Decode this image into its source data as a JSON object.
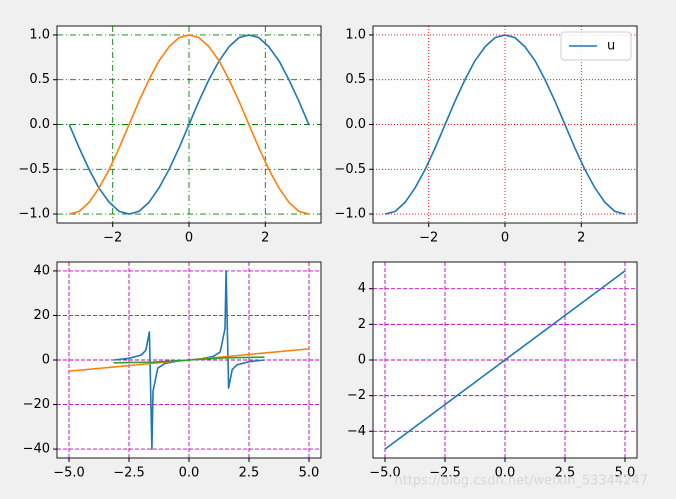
{
  "chart_data": [
    {
      "type": "line",
      "xlim": [
        -3.46,
        3.46
      ],
      "ylim": [
        -1.1,
        1.1
      ],
      "xticks": [
        {
          "value": -2,
          "label": "−2"
        },
        0,
        2
      ],
      "yticks": [
        {
          "value": -1,
          "label": "−1.0"
        },
        {
          "value": -0.5,
          "label": "−0.5"
        },
        {
          "value": 0,
          "label": "0.0"
        },
        {
          "value": 0.5,
          "label": "0.5"
        },
        {
          "value": 1,
          "label": "1.0"
        }
      ],
      "grid": {
        "color": "#008000",
        "dash": "6,3,1,3"
      },
      "series": [
        {
          "color": "#1f77b4",
          "x": [
            -3.14,
            -2.88,
            -2.62,
            -2.36,
            -2.09,
            -1.83,
            -1.57,
            -1.31,
            -1.05,
            -0.79,
            -0.52,
            -0.26,
            0,
            0.26,
            0.52,
            0.79,
            1.05,
            1.31,
            1.57,
            1.83,
            2.09,
            2.36,
            2.62,
            2.88,
            3.14
          ],
          "values": [
            0,
            -0.26,
            -0.5,
            -0.71,
            -0.87,
            -0.97,
            -1,
            -0.97,
            -0.87,
            -0.71,
            -0.5,
            -0.26,
            0,
            0.26,
            0.5,
            0.71,
            0.87,
            0.97,
            1,
            0.97,
            0.87,
            0.71,
            0.5,
            0.26,
            0
          ]
        },
        {
          "color": "#ff7f0e",
          "x": [
            -3.14,
            -2.88,
            -2.62,
            -2.36,
            -2.09,
            -1.83,
            -1.57,
            -1.31,
            -1.05,
            -0.79,
            -0.52,
            -0.26,
            0,
            0.26,
            0.52,
            0.79,
            1.05,
            1.31,
            1.57,
            1.83,
            2.09,
            2.36,
            2.62,
            2.88,
            3.14
          ],
          "values": [
            -1,
            -0.97,
            -0.87,
            -0.71,
            -0.5,
            -0.26,
            0,
            0.26,
            0.5,
            0.71,
            0.87,
            0.97,
            1,
            0.97,
            0.87,
            0.71,
            0.5,
            0.26,
            0,
            -0.26,
            -0.5,
            -0.71,
            -0.87,
            -0.97,
            -1
          ]
        }
      ]
    },
    {
      "type": "line",
      "xlim": [
        -3.46,
        3.46
      ],
      "ylim": [
        -1.1,
        1.1
      ],
      "xticks": [
        {
          "value": -2,
          "label": "−2"
        },
        0,
        2
      ],
      "yticks": [
        {
          "value": -1,
          "label": "−1.0"
        },
        {
          "value": -0.5,
          "label": "−0.5"
        },
        {
          "value": 0,
          "label": "0.0"
        },
        {
          "value": 0.5,
          "label": "0.5"
        },
        {
          "value": 1,
          "label": "1.0"
        }
      ],
      "grid": {
        "color": "#ff0000",
        "dash": "1,2"
      },
      "legend": "upper right",
      "series": [
        {
          "name": "u",
          "color": "#1f77b4",
          "x": [
            -3.14,
            -2.88,
            -2.62,
            -2.36,
            -2.09,
            -1.83,
            -1.57,
            -1.31,
            -1.05,
            -0.79,
            -0.52,
            -0.26,
            0,
            0.26,
            0.52,
            0.79,
            1.05,
            1.31,
            1.57,
            1.83,
            2.09,
            2.36,
            2.62,
            2.88,
            3.14
          ],
          "values": [
            -1,
            -0.97,
            -0.87,
            -0.71,
            -0.5,
            -0.26,
            0,
            0.26,
            0.5,
            0.71,
            0.87,
            0.97,
            1,
            0.97,
            0.87,
            0.71,
            0.5,
            0.26,
            0,
            -0.26,
            -0.5,
            -0.71,
            -0.87,
            -0.97,
            -1
          ]
        }
      ]
    },
    {
      "type": "line",
      "xlim": [
        -5.5,
        5.5
      ],
      "ylim": [
        -44,
        44
      ],
      "xticks": [
        {
          "value": -5,
          "label": "−5.0"
        },
        {
          "value": -2.5,
          "label": "−2.5"
        },
        {
          "value": 0,
          "label": "0.0"
        },
        {
          "value": 2.5,
          "label": "2.5"
        },
        {
          "value": 5,
          "label": "5.0"
        }
      ],
      "yticks": [
        {
          "value": -40,
          "label": "−40"
        },
        {
          "value": -20,
          "label": "−20"
        },
        0,
        20,
        40
      ],
      "grid": {
        "color": "#bf00bf",
        "dash": "4,2"
      },
      "series": [
        {
          "color": "#1f77b4",
          "x": [
            -3.14,
            -2.5,
            -2.0,
            -1.8,
            -1.65,
            -1.546,
            -1.5,
            -1.3,
            -1.0,
            -0.5,
            0,
            0.5,
            1.0,
            1.3,
            1.5,
            1.546,
            1.65,
            1.8,
            2.0,
            2.5,
            3.14
          ],
          "values": [
            0,
            0.75,
            2.19,
            4.29,
            12.6,
            -40,
            -14.1,
            -3.6,
            -1.56,
            -0.55,
            0,
            0.55,
            1.56,
            3.6,
            14.1,
            40,
            -12.6,
            -4.29,
            -2.19,
            -0.75,
            0
          ]
        },
        {
          "color": "#ff7f0e",
          "x": [
            -5,
            5
          ],
          "values": [
            -5,
            5
          ]
        },
        {
          "color": "#2ca02c",
          "x": [
            -3.14,
            -1.5,
            0,
            1.5,
            3.14
          ],
          "values": [
            -1.26,
            -0.98,
            0,
            0.98,
            1.26
          ]
        }
      ]
    },
    {
      "type": "line",
      "xlim": [
        -5.5,
        5.5
      ],
      "ylim": [
        -5.5,
        5.5
      ],
      "xticks": [
        {
          "value": -5,
          "label": "−5.0"
        },
        {
          "value": -2.5,
          "label": "−2.5"
        },
        {
          "value": 0,
          "label": "0.0"
        },
        {
          "value": 2.5,
          "label": "2.5"
        },
        {
          "value": 5,
          "label": "5.0"
        }
      ],
      "yticks": [
        {
          "value": -4,
          "label": "−4"
        },
        {
          "value": -2,
          "label": "−2"
        },
        0,
        2,
        4
      ],
      "grid": {
        "color": "#bf00bf",
        "dash": "4,2"
      },
      "series": [
        {
          "color": "#1f77b4",
          "x": [
            -5,
            5
          ],
          "values": [
            -5,
            5
          ]
        }
      ]
    }
  ],
  "watermark": "https://blog.csdn.net/weixin_53344247"
}
